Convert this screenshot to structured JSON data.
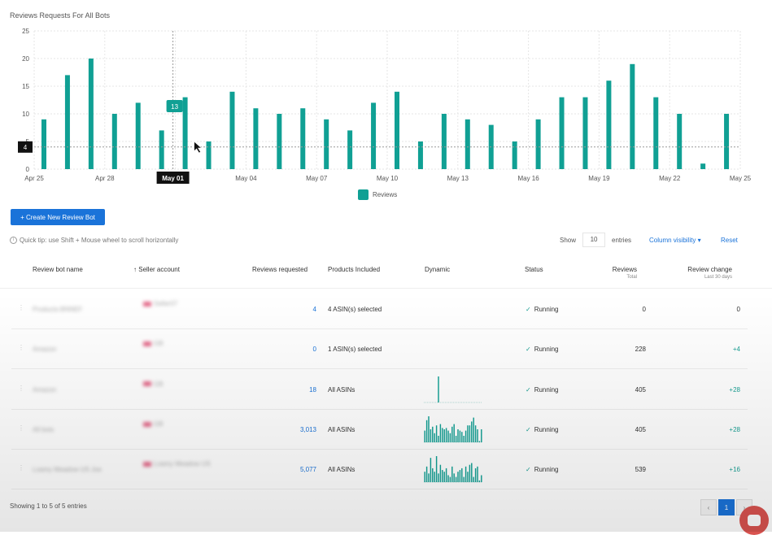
{
  "chart_title": "Reviews Requests For All Bots",
  "chart_data": {
    "type": "bar",
    "title": "Reviews Requests For All Bots",
    "xlabel": "",
    "ylabel": "",
    "ylim": [
      0,
      25
    ],
    "yticks": [
      "0",
      "5",
      "10",
      "15",
      "20",
      "25"
    ],
    "categories": [
      "Apr 25",
      "Apr 26",
      "Apr 27",
      "Apr 28",
      "Apr 29",
      "Apr 30",
      "May 01",
      "May 02",
      "May 03",
      "May 04",
      "May 05",
      "May 06",
      "May 07",
      "May 08",
      "May 09",
      "May 10",
      "May 11",
      "May 12",
      "May 13",
      "May 14",
      "May 15",
      "May 16",
      "May 17",
      "May 18",
      "May 19",
      "May 20",
      "May 21",
      "May 22",
      "May 23",
      "May 24",
      "May 25"
    ],
    "xtick_labels": [
      "Apr 25",
      "Apr 28",
      "May 01",
      "May 04",
      "May 07",
      "May 10",
      "May 13",
      "May 16",
      "May 19",
      "May 22",
      "May 25"
    ],
    "series": [
      {
        "name": "Reviews",
        "values": [
          9,
          17,
          20,
          10,
          12,
          7,
          13,
          5,
          14,
          11,
          10,
          11,
          9,
          7,
          12,
          14,
          5,
          10,
          9,
          8,
          5,
          9,
          13,
          13,
          16,
          19,
          13,
          10,
          1,
          10,
          0
        ]
      }
    ],
    "grid": true,
    "legend": "bottom",
    "tooltip_value": "13",
    "hover_x_label": "May 01",
    "hover_y_label": "4",
    "color": "#10a094"
  },
  "create_button": "+ Create New Review Bot",
  "tip": "Quick tip: use Shift + Mouse wheel to scroll horizontally",
  "show_label": "Show",
  "entries_value": "10",
  "entries_label": "entries",
  "column_visibility": "Column visibility ▾",
  "reset": "Reset",
  "headers": {
    "name": "Review bot name",
    "seller": "Seller account",
    "requested": "Reviews requested",
    "products": "Products Included",
    "dynamic": "Dynamic",
    "status": "Status",
    "reviews": "Reviews",
    "reviews_sub": "Total",
    "change": "Review change",
    "change_sub": "Last 30 days"
  },
  "rows": [
    {
      "name": "Products-BNNEF",
      "seller": "Seller07",
      "requested": "4",
      "products": "4 ASIN(s) selected",
      "status": "Running",
      "reviews": "0",
      "change": "0",
      "spark": []
    },
    {
      "name": "Amazon",
      "seller": "GB",
      "requested": "0",
      "products": "1 ASIN(s) selected",
      "status": "Running",
      "reviews": "228",
      "change": "+4",
      "spark": []
    },
    {
      "name": "Amazon",
      "seller": "GB",
      "requested": "18",
      "products": "All ASINs",
      "status": "Running",
      "reviews": "405",
      "change": "+28",
      "spark": [
        0,
        0,
        0,
        0,
        0,
        0,
        0,
        18,
        0,
        0,
        0,
        0,
        0,
        0,
        0,
        0,
        0,
        0,
        0,
        0,
        0,
        0,
        0,
        0,
        0,
        0,
        0,
        0,
        0,
        0
      ]
    },
    {
      "name": "All bots",
      "seller": "GB",
      "requested": "3,013",
      "products": "All ASINs",
      "status": "Running",
      "reviews": "405",
      "change": "+28",
      "spark": [
        9,
        17,
        20,
        10,
        12,
        7,
        13,
        5,
        14,
        11,
        10,
        11,
        9,
        7,
        12,
        14,
        5,
        10,
        9,
        8,
        5,
        9,
        13,
        13,
        16,
        19,
        13,
        10,
        1,
        10
      ]
    },
    {
      "name": "Loamy Meadow US Joe",
      "seller": "Loamy Meadow US",
      "requested": "5,077",
      "products": "All ASINs",
      "status": "Running",
      "reviews": "539",
      "change": "+16",
      "spark": [
        6,
        9,
        5,
        14,
        8,
        6,
        15,
        5,
        10,
        7,
        6,
        8,
        4,
        3,
        9,
        5,
        3,
        6,
        7,
        8,
        3,
        9,
        6,
        10,
        11,
        3,
        8,
        9,
        1,
        4
      ]
    }
  ],
  "footer_info": "Showing 1 to 5 of 5 entries",
  "pager": {
    "prev": "‹",
    "page": "1",
    "next": "›"
  }
}
